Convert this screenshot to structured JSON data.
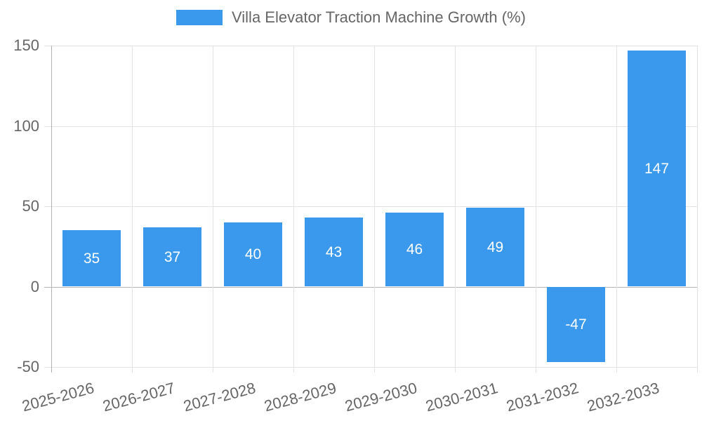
{
  "chart_data": {
    "type": "bar",
    "legend": {
      "label": "Villa Elevator Traction Machine Growth (%)",
      "position": "top"
    },
    "categories": [
      "2025-2026",
      "2026-2027",
      "2027-2028",
      "2028-2029",
      "2029-2030",
      "2030-2031",
      "2031-2032",
      "2032-2033"
    ],
    "values": [
      35,
      37,
      40,
      43,
      46,
      49,
      -47,
      147
    ],
    "data_labels": [
      "35",
      "37",
      "40",
      "43",
      "46",
      "49",
      "-47",
      "147"
    ],
    "ylim": [
      -50,
      150
    ],
    "yticks": [
      150,
      100,
      50,
      0,
      -50
    ],
    "grid": true,
    "legend_position": "top",
    "colors": {
      "bar": "#3a99ed",
      "value_label": "#ffffff",
      "axis_text": "#666666",
      "gridline": "#e3e3e3",
      "zero_line": "#b4b4b4",
      "axis_line": "#b4b4b4",
      "background": "#ffffff"
    }
  }
}
